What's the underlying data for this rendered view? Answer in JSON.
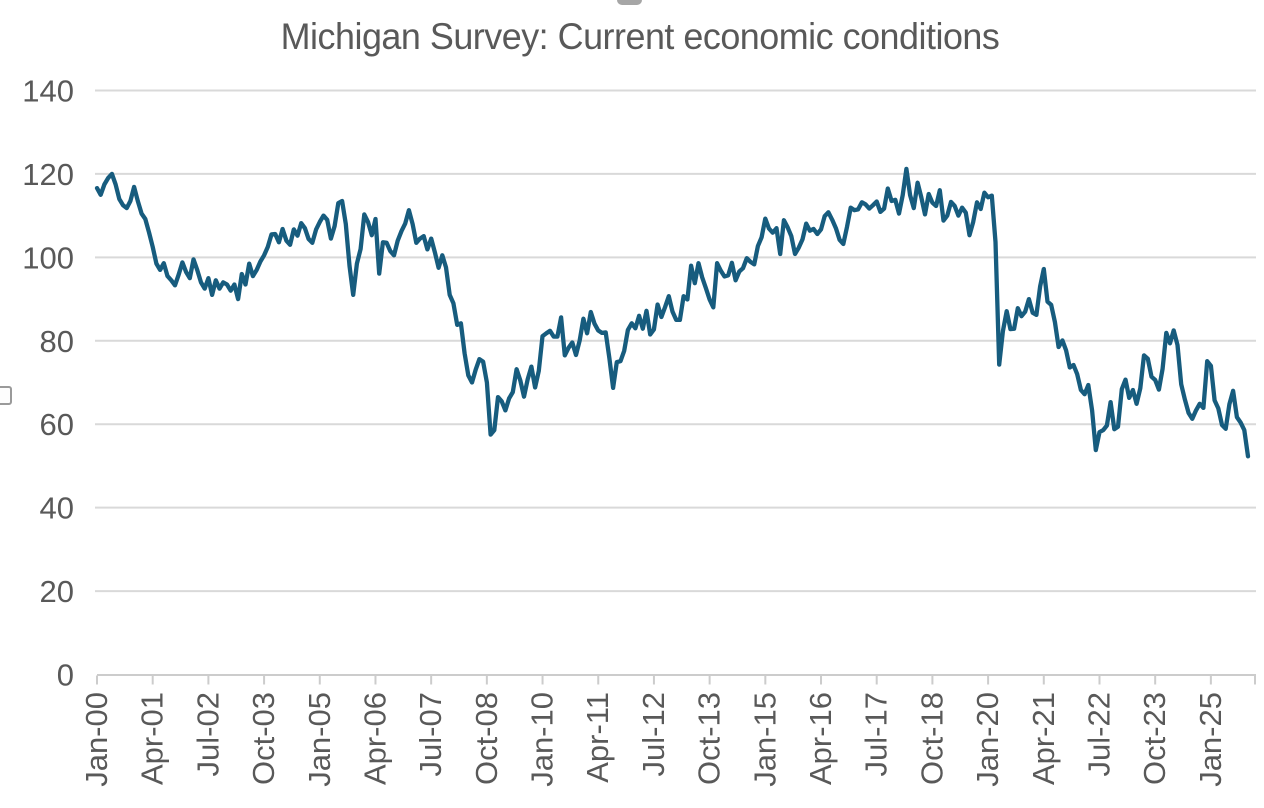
{
  "chart_data": {
    "type": "line",
    "title": "Michigan Survey: Current economic conditions",
    "x_start": "Jan-00",
    "x_end": "Nov-25",
    "frequency": "monthly",
    "x_tick_labels": [
      "Jan-00",
      "Apr-01",
      "Jul-02",
      "Oct-03",
      "Jan-05",
      "Apr-06",
      "Jul-07",
      "Oct-08",
      "Jan-10",
      "Apr-11",
      "Jul-12",
      "Oct-13",
      "Jan-15",
      "Apr-16",
      "Jul-17",
      "Oct-18",
      "Jan-20",
      "Apr-21",
      "Jul-22",
      "Oct-23",
      "Jan-25"
    ],
    "y_ticks": [
      0,
      20,
      40,
      60,
      80,
      100,
      120,
      140
    ],
    "ylim": [
      0,
      140
    ],
    "grid": "horizontal",
    "legend_position": "none",
    "line_color": "#175C7E",
    "grid_color": "#d9d9d9",
    "axis_color": "#cccccc",
    "text_color": "#595959",
    "series": [
      {
        "name": "Current economic conditions",
        "values": [
          116.6,
          115.0,
          117.5,
          119.0,
          120.0,
          117.5,
          114.0,
          112.5,
          111.8,
          113.5,
          116.9,
          113.5,
          110.5,
          109.2,
          106.0,
          102.5,
          98.5,
          97.0,
          98.6,
          95.5,
          94.5,
          93.3,
          95.9,
          98.8,
          96.5,
          95.0,
          99.5,
          97.0,
          94.0,
          92.5,
          95.0,
          91.0,
          94.5,
          92.5,
          94.0,
          93.5,
          92.0,
          93.5,
          90.0,
          96.0,
          93.5,
          98.5,
          95.5,
          97.0,
          99.0,
          100.5,
          102.5,
          105.5,
          105.6,
          103.6,
          106.8,
          104.0,
          103.0,
          106.7,
          105.2,
          108.2,
          107.0,
          104.4,
          103.5,
          106.7,
          108.5,
          110.0,
          109.0,
          104.5,
          107.5,
          113.0,
          113.5,
          108.0,
          98.0,
          91.0,
          98.5,
          102.0,
          110.3,
          108.5,
          105.3,
          109.2,
          96.1,
          103.6,
          103.5,
          101.5,
          100.5,
          104.0,
          106.3,
          108.1,
          111.3,
          108.0,
          103.5,
          104.5,
          105.1,
          101.9,
          104.5,
          101.2,
          97.5,
          100.5,
          97.6,
          91.0,
          89.0,
          83.8,
          84.2,
          77.0,
          71.7,
          70.0,
          73.1,
          75.6,
          75.0,
          70.0,
          57.5,
          58.6,
          66.5,
          65.5,
          63.3,
          66.2,
          67.7,
          73.2,
          70.5,
          66.6,
          70.8,
          73.8,
          68.8,
          72.8,
          81.1,
          81.8,
          82.4,
          81.0,
          81.0,
          85.6,
          76.5,
          78.3,
          79.6,
          76.6,
          80.1,
          85.3,
          81.8,
          86.9,
          84.1,
          82.5,
          81.9,
          82.0,
          75.8,
          68.7,
          74.9,
          75.1,
          77.6,
          82.6,
          84.2,
          83.0,
          86.0,
          82.9,
          87.2,
          81.5,
          82.7,
          88.7,
          85.7,
          88.1,
          90.7,
          87.0,
          85.0,
          85.0,
          90.7,
          89.9,
          98.0,
          93.8,
          98.6,
          95.2,
          92.6,
          89.9,
          88.0,
          98.6,
          96.8,
          95.4,
          95.7,
          98.7,
          94.5,
          96.6,
          97.4,
          99.8,
          98.9,
          98.3,
          102.7,
          104.8,
          109.3,
          106.9,
          105.9,
          107.0,
          100.8,
          108.9,
          107.2,
          105.1,
          100.8,
          102.3,
          104.3,
          108.1,
          106.4,
          106.8,
          105.6,
          106.7,
          109.9,
          110.8,
          109.0,
          107.0,
          104.2,
          103.2,
          107.3,
          111.9,
          111.3,
          111.5,
          113.2,
          112.7,
          111.7,
          112.5,
          113.4,
          110.9,
          111.7,
          116.5,
          113.5,
          113.8,
          110.5,
          114.9,
          121.2,
          114.9,
          111.8,
          117.9,
          114.4,
          110.3,
          115.2,
          113.1,
          112.3,
          116.1,
          108.8,
          110.0,
          113.3,
          112.3,
          110.0,
          111.9,
          110.7,
          105.3,
          108.5,
          113.2,
          111.6,
          115.5,
          114.4,
          114.8,
          103.7,
          74.3,
          82.3,
          87.1,
          82.8,
          82.9,
          87.8,
          85.9,
          87.0,
          90.0,
          86.7,
          86.2,
          93.0,
          97.2,
          89.4,
          88.6,
          84.5,
          78.5,
          80.1,
          77.7,
          73.6,
          74.2,
          72.0,
          68.2,
          67.2,
          69.4,
          63.3,
          53.8,
          58.1,
          58.6,
          59.7,
          65.3,
          58.8,
          59.4,
          68.4,
          70.7,
          66.3,
          68.2,
          64.9,
          68.6,
          76.5,
          75.7,
          71.4,
          70.6,
          68.3,
          73.3,
          81.9,
          79.4,
          82.5,
          79.0,
          69.6,
          65.9,
          62.7,
          61.3,
          63.3,
          64.9,
          63.9,
          75.1,
          74.0,
          65.7,
          63.8,
          59.8,
          58.9,
          64.8,
          68.0,
          61.7,
          60.4,
          58.6,
          52.3
        ]
      }
    ]
  }
}
